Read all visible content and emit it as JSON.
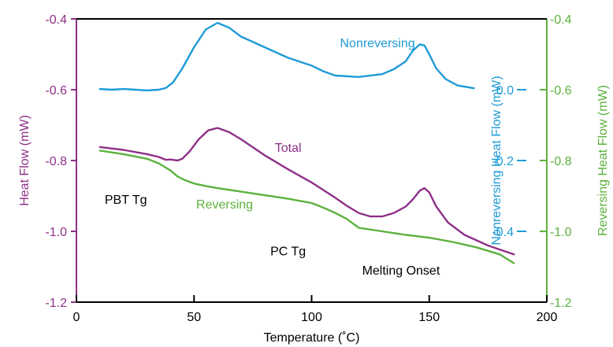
{
  "chart_data": {
    "type": "line",
    "xlabel": "Temperature (˚C)",
    "x_ticks": [
      "0",
      "50",
      "100",
      "150",
      "200"
    ],
    "xlim": [
      0,
      200
    ],
    "axes": {
      "left": {
        "label": "Heat Flow (mW)",
        "color": "#8E3088",
        "ylim": [
          -1.2,
          -0.4
        ],
        "ticks": [
          "-0.4",
          "-0.6",
          "-0.8",
          "-1.0",
          "-1.2"
        ]
      },
      "right_inner": {
        "label": "Nonreversing Heat Flow (mW)",
        "color": "#1E9BD7",
        "ylim": [
          -0.6,
          0.2
        ],
        "ticks": [
          "0.0",
          "-0.2",
          "-0.4"
        ]
      },
      "right_outer": {
        "label": "Reversing Heat Flow (mW)",
        "color": "#5DB13E",
        "ylim": [
          -1.2,
          -0.4
        ],
        "ticks": [
          "-0.4",
          "-0.6",
          "-0.8",
          "-1.0",
          "-1.2"
        ]
      }
    },
    "series": [
      {
        "name": "Nonreversing",
        "axis": "right_inner",
        "color": "#1E9BD7",
        "x": [
          10,
          15,
          20,
          25,
          30,
          35,
          38,
          41,
          45,
          50,
          55,
          60,
          65,
          70,
          80,
          90,
          100,
          105,
          110,
          120,
          130,
          135,
          140,
          143,
          146,
          148,
          150,
          153,
          157,
          162,
          169
        ],
        "y": [
          0.002,
          0.0,
          0.002,
          0.0,
          -0.002,
          0.0,
          0.005,
          0.02,
          0.06,
          0.12,
          0.17,
          0.189,
          0.175,
          0.15,
          0.12,
          0.09,
          0.068,
          0.052,
          0.04,
          0.036,
          0.044,
          0.058,
          0.08,
          0.11,
          0.128,
          0.125,
          0.1,
          0.06,
          0.03,
          0.012,
          0.004
        ]
      },
      {
        "name": "Total",
        "axis": "left",
        "color": "#8E3088",
        "x": [
          10,
          20,
          30,
          35,
          38,
          40,
          43,
          45,
          48,
          52,
          56,
          60,
          65,
          70,
          80,
          90,
          100,
          110,
          115,
          120,
          125,
          130,
          135,
          140,
          143,
          146,
          148,
          150,
          153,
          158,
          165,
          175,
          186
        ],
        "y": [
          -0.762,
          -0.77,
          -0.782,
          -0.79,
          -0.798,
          -0.797,
          -0.8,
          -0.795,
          -0.775,
          -0.74,
          -0.715,
          -0.708,
          -0.72,
          -0.74,
          -0.785,
          -0.825,
          -0.862,
          -0.905,
          -0.928,
          -0.948,
          -0.958,
          -0.958,
          -0.948,
          -0.93,
          -0.91,
          -0.885,
          -0.878,
          -0.89,
          -0.93,
          -0.975,
          -1.01,
          -1.04,
          -1.065
        ]
      },
      {
        "name": "Reversing",
        "axis": "right_outer",
        "color": "#5DB13E",
        "x": [
          10,
          20,
          30,
          35,
          40,
          43,
          46,
          50,
          55,
          60,
          70,
          80,
          90,
          100,
          105,
          110,
          115,
          120,
          130,
          140,
          150,
          160,
          170,
          180,
          186
        ],
        "y": [
          -0.772,
          -0.782,
          -0.795,
          -0.808,
          -0.828,
          -0.845,
          -0.855,
          -0.865,
          -0.872,
          -0.878,
          -0.888,
          -0.898,
          -0.908,
          -0.92,
          -0.933,
          -0.948,
          -0.965,
          -0.99,
          -1.0,
          -1.01,
          -1.018,
          -1.03,
          -1.045,
          -1.065,
          -1.09
        ]
      }
    ],
    "annotations": [
      {
        "text": "Nonreversing",
        "x": 128,
        "y_axis": "right_inner",
        "y": 0.12,
        "color": "#1E9BD7"
      },
      {
        "text": "Total",
        "x": 90,
        "y_axis": "left",
        "y": -0.775,
        "color": "#8E3088"
      },
      {
        "text": "Reversing",
        "x": 63,
        "y_axis": "left",
        "y": -0.935,
        "color": "#5DB13E"
      },
      {
        "text": "PBT Tg",
        "x": 21,
        "y_axis": "left",
        "y": -0.922,
        "color": "#000000"
      },
      {
        "text": "PC Tg",
        "x": 90,
        "y_axis": "left",
        "y": -1.068,
        "color": "#000000"
      },
      {
        "text": "Melting Onset",
        "x": 138,
        "y_axis": "left",
        "y": -1.122,
        "color": "#000000"
      }
    ]
  }
}
